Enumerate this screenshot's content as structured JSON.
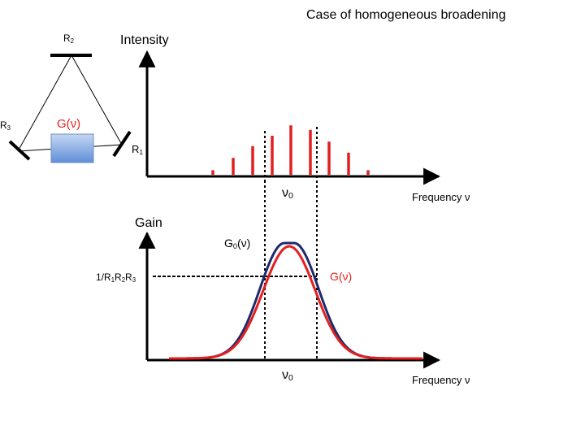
{
  "title": "Case of homogeneous broadening",
  "cavity": {
    "mirror_r2": "R",
    "mirror_r2_sub": "2",
    "mirror_r3": "R",
    "mirror_r3_sub": "3",
    "mirror_r1": "R",
    "mirror_r1_sub": "1",
    "gain_medium_label": "G(ν)"
  },
  "top_plot": {
    "ylabel": "Intensity",
    "xlabel": "Frequency ν",
    "center_label": "ν",
    "center_sub": "0",
    "mode_heights": [
      0.07,
      0.26,
      0.44,
      0.6,
      0.76,
      0.69,
      0.51,
      0.34,
      0.07
    ]
  },
  "bottom_plot": {
    "ylabel": "Gain",
    "peak_label_main": "G",
    "peak_label_sub": "0",
    "peak_label_tail": "(ν)",
    "threshold_label": "1/R1R2R3",
    "threshold_parts": [
      "1/R",
      "1",
      "R",
      "2",
      "R",
      "3"
    ],
    "curve_label": "G(ν)",
    "xlabel": "Frequency ν",
    "center_label": "ν",
    "center_sub": "0",
    "threshold_fraction": 0.68
  },
  "colors": {
    "red": "#e31f1f",
    "navy": "#1f2a6b",
    "box_top": "#c5d7f3",
    "box_bottom": "#5f8fd6"
  }
}
